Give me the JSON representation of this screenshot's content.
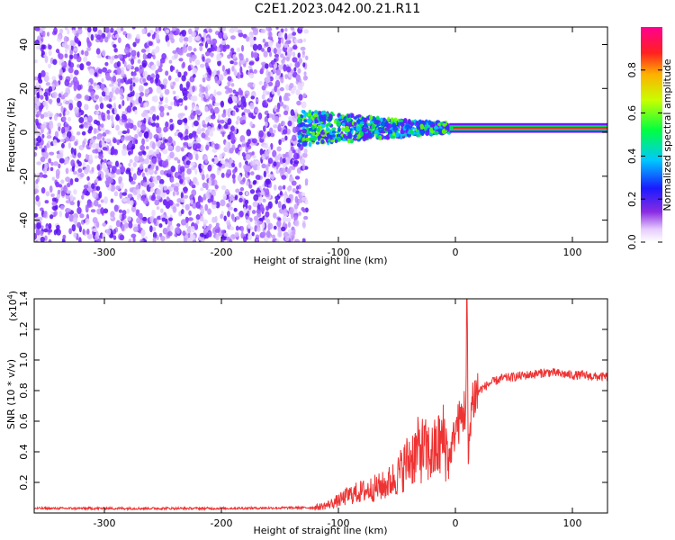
{
  "title": "C2E1.2023.042.00.21.R11",
  "chart_data": [
    {
      "type": "heatmap",
      "xlabel": "Height of straight line (km)",
      "ylabel": "Frequency (Hz)",
      "xlim": [
        -360,
        130
      ],
      "ylim": [
        -50,
        48
      ],
      "xticks": [
        -300,
        -200,
        -100,
        0,
        100
      ],
      "yticks": [
        -40,
        -20,
        0,
        20,
        40
      ],
      "colorbar": {
        "label": "Normalized spectral amplitude",
        "range": [
          0,
          1
        ],
        "ticks": [
          0.0,
          0.2,
          0.4,
          0.6,
          0.8
        ],
        "colormap": "rainbow (white-violet-blue-cyan-green-yellow-red-magenta)"
      },
      "features": {
        "broadband_noise_x": [
          -360,
          -135
        ],
        "narrow_band_center_hz": 2,
        "narrow_band_start_x": -135,
        "strong_band_start_x": -5
      }
    },
    {
      "type": "line",
      "xlabel": "Height of straight line (km)",
      "ylabel": "SNR (10 * v/v)",
      "ylabel_multiplier": "(x10",
      "ylabel_multiplier_exp": "4",
      "ylabel_multiplier_close": ")",
      "xlim": [
        -360,
        130
      ],
      "ylim": [
        0,
        1.4
      ],
      "xticks": [
        -300,
        -200,
        -100,
        0,
        100
      ],
      "yticks": [
        0.2,
        0.4,
        0.6,
        0.8,
        1.0,
        1.2,
        1.4
      ],
      "series": [
        {
          "color": "#ee3333",
          "x": [
            -360,
            -300,
            -200,
            -120,
            -110,
            -100,
            -90,
            -80,
            -70,
            -60,
            -50,
            -40,
            -30,
            -20,
            -10,
            -5,
            0,
            5,
            9,
            10,
            11,
            13,
            15,
            20,
            30,
            40,
            50,
            60,
            70,
            80,
            90,
            100,
            110,
            120,
            130
          ],
          "y": [
            0.03,
            0.03,
            0.03,
            0.035,
            0.05,
            0.08,
            0.12,
            0.14,
            0.16,
            0.18,
            0.24,
            0.35,
            0.42,
            0.38,
            0.48,
            0.36,
            0.55,
            0.62,
            0.7,
            1.42,
            0.3,
            0.66,
            0.75,
            0.8,
            0.85,
            0.88,
            0.89,
            0.9,
            0.91,
            0.92,
            0.91,
            0.9,
            0.9,
            0.89,
            0.89
          ]
        }
      ]
    }
  ]
}
